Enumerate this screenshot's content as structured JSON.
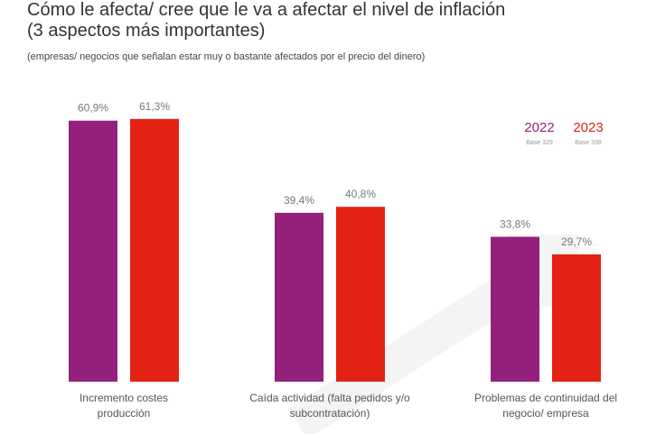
{
  "chart_data": {
    "type": "bar",
    "title": "Cómo le afecta/ cree que le va a afectar el nivel de inflación (3 aspectos más importantes)",
    "title_lines": [
      "Cómo le afecta/ cree que le va a afectar el nivel de inflación",
      "(3 aspectos más importantes)"
    ],
    "subtitle": "(empresas/ negocios que señalan estar muy o bastante afectados por el precio del dinero)",
    "categories": [
      [
        "Incremento costes",
        "producción"
      ],
      [
        "Caída actividad (falta pedidos y/o",
        "subcontratación)"
      ],
      [
        "Problemas de continuidad del",
        "negocio/ empresa"
      ]
    ],
    "series": [
      {
        "name": "2022",
        "base": "Base 329",
        "color": "#93207a",
        "values": [
          60.9,
          39.4,
          33.8
        ],
        "labels": [
          "60,9%",
          "39,4%",
          "33,8%"
        ]
      },
      {
        "name": "2023",
        "base": "Base 338",
        "color": "#e32213",
        "values": [
          61.3,
          40.8,
          29.7
        ],
        "labels": [
          "61,3%",
          "40,8%",
          "29,7%"
        ]
      }
    ],
    "ylim": [
      0,
      70
    ],
    "legend": "top-right",
    "grid": false
  }
}
